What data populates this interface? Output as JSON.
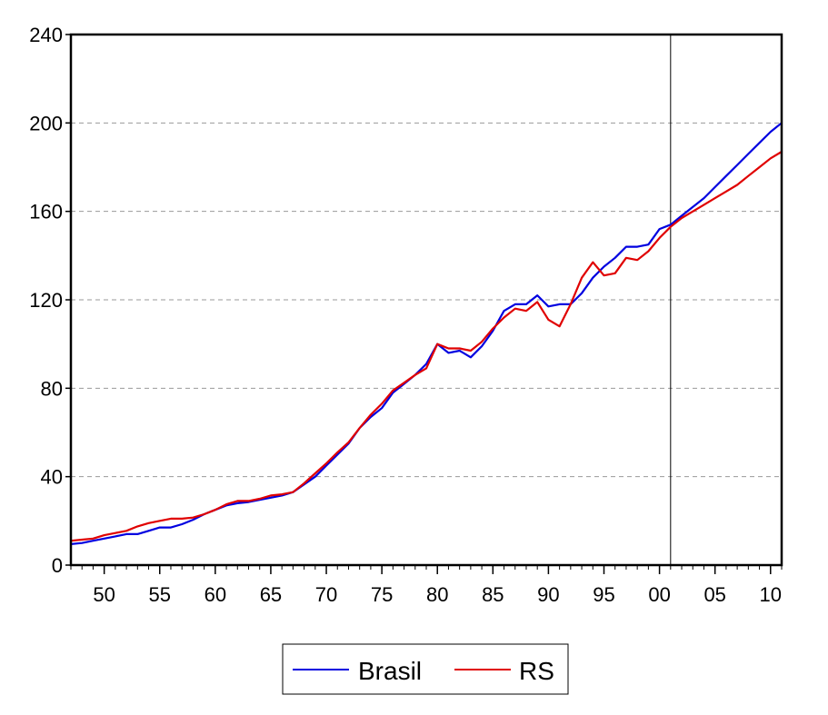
{
  "chart_data": {
    "type": "line",
    "title": "",
    "xlabel": "",
    "ylabel": "",
    "ylim": [
      0,
      240
    ],
    "xlim": [
      1947,
      2011
    ],
    "yticks": [
      0,
      40,
      80,
      120,
      160,
      200,
      240
    ],
    "ytick_labels": [
      "0",
      "40",
      "80",
      "120",
      "160",
      "200",
      "240"
    ],
    "xticks": [
      1950,
      1955,
      1960,
      1965,
      1970,
      1975,
      1980,
      1985,
      1990,
      1995,
      2000,
      2005,
      2010
    ],
    "xtick_labels": [
      "50",
      "55",
      "60",
      "65",
      "70",
      "75",
      "80",
      "85",
      "90",
      "95",
      "00",
      "05",
      "10"
    ],
    "grid": "horizontal dashed",
    "vertical_marker": 2001,
    "legend_position": "bottom-center",
    "series": [
      {
        "name": "Brasil",
        "color": "#0000e0",
        "x": [
          1947,
          1948,
          1949,
          1950,
          1951,
          1952,
          1953,
          1954,
          1955,
          1956,
          1957,
          1958,
          1959,
          1960,
          1961,
          1962,
          1963,
          1964,
          1965,
          1966,
          1967,
          1968,
          1969,
          1970,
          1971,
          1972,
          1973,
          1974,
          1975,
          1976,
          1977,
          1978,
          1979,
          1980,
          1981,
          1982,
          1983,
          1984,
          1985,
          1986,
          1987,
          1988,
          1989,
          1990,
          1991,
          1992,
          1993,
          1994,
          1995,
          1996,
          1997,
          1998,
          1999,
          2000,
          2001,
          2002,
          2003,
          2004,
          2005,
          2006,
          2007,
          2008,
          2009,
          2010,
          2011
        ],
        "values": [
          9.5,
          10,
          11,
          12,
          13,
          14,
          14,
          15.5,
          17,
          17,
          18.5,
          20.5,
          23,
          25,
          27,
          28,
          28.5,
          29.5,
          30.5,
          31.5,
          33,
          36.5,
          40,
          45,
          50,
          55,
          62,
          67,
          71,
          78,
          82,
          86,
          91,
          100,
          96,
          97,
          94,
          99,
          106,
          115,
          118,
          118,
          122,
          117,
          118,
          118,
          123,
          130,
          135,
          139,
          144,
          144,
          145,
          152,
          154,
          158,
          162,
          166,
          171,
          176,
          181,
          186,
          191,
          196,
          200
        ]
      },
      {
        "name": "RS",
        "color": "#e00000",
        "x": [
          1947,
          1948,
          1949,
          1950,
          1951,
          1952,
          1953,
          1954,
          1955,
          1956,
          1957,
          1958,
          1959,
          1960,
          1961,
          1962,
          1963,
          1964,
          1965,
          1966,
          1967,
          1968,
          1969,
          1970,
          1971,
          1972,
          1973,
          1974,
          1975,
          1976,
          1977,
          1978,
          1979,
          1980,
          1981,
          1982,
          1983,
          1984,
          1985,
          1986,
          1987,
          1988,
          1989,
          1990,
          1991,
          1992,
          1993,
          1994,
          1995,
          1996,
          1997,
          1998,
          1999,
          2000,
          2001,
          2002,
          2003,
          2004,
          2005,
          2006,
          2007,
          2008,
          2009,
          2010,
          2011
        ],
        "values": [
          11,
          11.5,
          12,
          13.5,
          14.5,
          15.5,
          17.5,
          19,
          20,
          21,
          21,
          21.5,
          23,
          25,
          27.5,
          29,
          29,
          30,
          31.5,
          32,
          33,
          37,
          41.5,
          46,
          51,
          55.5,
          62,
          68,
          73,
          79,
          82.5,
          86,
          89,
          100,
          98,
          98,
          97,
          101,
          107,
          112,
          116,
          115,
          119,
          111,
          108,
          118,
          130,
          137,
          131,
          132,
          139,
          138,
          142,
          148,
          153,
          157,
          160,
          163,
          166,
          169,
          172,
          176,
          180,
          184,
          187
        ]
      }
    ]
  }
}
